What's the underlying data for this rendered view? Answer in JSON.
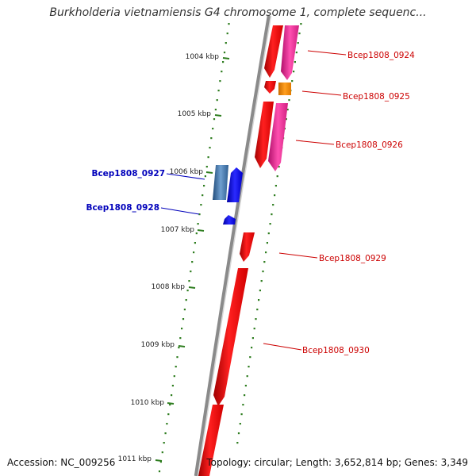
{
  "title": "Burkholderia vietnamiensis G4 chromosome 1, complete sequenc...",
  "footer": {
    "accession": "Accession: NC_009256",
    "topology": "Topology: circular; Length: 3,652,814 bp; Genes: 3,349"
  },
  "colors": {
    "backbone": "#8a8a8a",
    "tick": "#2e7d1f",
    "gene_red": "#ee1111",
    "gene_magenta": "#e0208a",
    "gene_orange": "#f08a00",
    "gene_blue": "#1010e0",
    "gene_steel": "#3a6fa6",
    "label_fwd": "#cc0000",
    "label_rev": "#0000bb"
  },
  "chart_data": {
    "type": "genome-map",
    "kbp_ticks": [
      {
        "kbp": 1004,
        "label": "1004 kbp"
      },
      {
        "kbp": 1005,
        "label": "1005 kbp"
      },
      {
        "kbp": 1006,
        "label": "1006 kbp"
      },
      {
        "kbp": 1007,
        "label": "1007 kbp"
      },
      {
        "kbp": 1008,
        "label": "1008 kbp"
      },
      {
        "kbp": 1009,
        "label": "1009 kbp"
      },
      {
        "kbp": 1010,
        "label": "1010 kbp"
      },
      {
        "kbp": 1011,
        "label": "1011 kbp"
      }
    ],
    "genes": [
      {
        "name": "Bcep1808_0924",
        "strand": "+"
      },
      {
        "name": "Bcep1808_0925",
        "strand": "+"
      },
      {
        "name": "Bcep1808_0926",
        "strand": "+"
      },
      {
        "name": "Bcep1808_0927",
        "strand": "-"
      },
      {
        "name": "Bcep1808_0928",
        "strand": "-"
      },
      {
        "name": "Bcep1808_0929",
        "strand": "+"
      },
      {
        "name": "Bcep1808_0930",
        "strand": "+"
      }
    ]
  }
}
